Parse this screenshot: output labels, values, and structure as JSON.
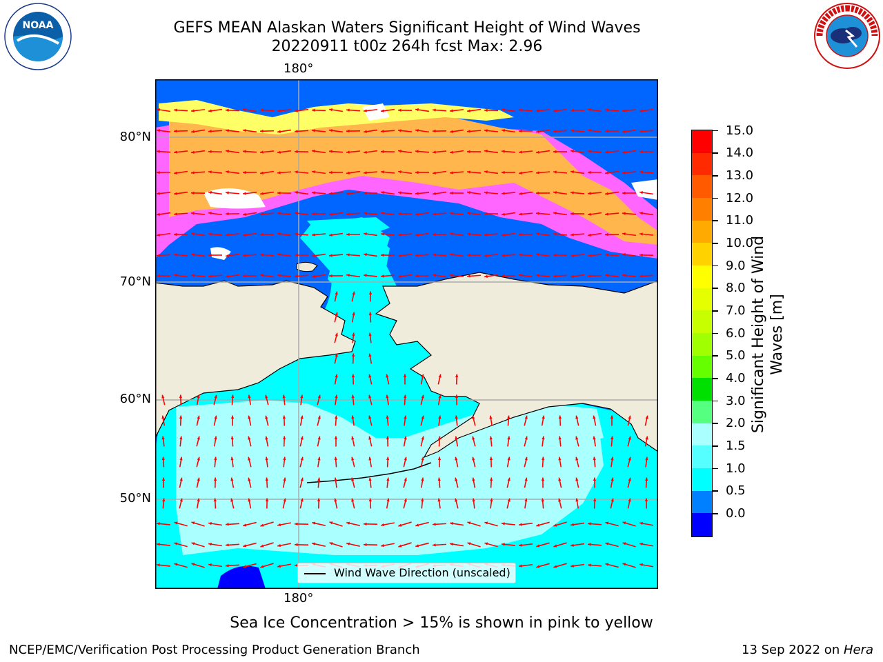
{
  "title": {
    "line1": "GEFS MEAN Alaskan Waters Significant Height of Wind Waves",
    "line2": "20220911 t00z 264h fcst   Max: 2.96"
  },
  "logos": {
    "left": {
      "name": "noaa-logo",
      "text": "NOAA"
    },
    "right": {
      "name": "nws-logo",
      "text": "NATIONAL WEATHER SERVICE"
    }
  },
  "map": {
    "longitude_label_top": "180°",
    "longitude_label_bottom": "180°",
    "latitude_labels": [
      "80°N",
      "70°N",
      "60°N",
      "50°N"
    ],
    "colors": {
      "land": "#efecdc",
      "ocean_deep": "#0066ff",
      "ocean_mid": "#00ffff",
      "ocean_light": "#aaffff",
      "ice_pink": "#ff66ff",
      "ice_orange": "#ffb74d",
      "ice_yellow": "#ffff66",
      "arrow": "#ff0000",
      "grid": "#aaaaaa"
    },
    "legend": "Wind Wave Direction (unscaled)"
  },
  "colorbar": {
    "title": "Significant Height of Wind Waves [m]",
    "title_line1": "Significant Height of Wind",
    "title_line2": "Waves [m]",
    "ticks": [
      "15.0",
      "14.0",
      "13.0",
      "12.0",
      "11.0",
      "10.0",
      "9.0",
      "8.0",
      "7.0",
      "6.0",
      "5.0",
      "4.0",
      "3.0",
      "2.0",
      "1.5",
      "1.0",
      "0.5",
      "0.0"
    ],
    "segment_colors_top_to_bottom": [
      "#ff0000",
      "#ff2a00",
      "#ff5a00",
      "#ff8000",
      "#ffaa00",
      "#ffd200",
      "#ffff00",
      "#e6ff00",
      "#c8ff00",
      "#a0ff00",
      "#66ff00",
      "#00e000",
      "#55ff7f",
      "#aaffff",
      "#55ffff",
      "#00ffff",
      "#0080ff",
      "#0000ff"
    ]
  },
  "caption": "Sea Ice Concentration > 15% is shown in pink to yellow",
  "footer": {
    "left": "NCEP/EMC/Verification Post Processing Product Generation Branch",
    "right_prefix": "13 Sep 2022 on ",
    "right_host": "Hera"
  }
}
